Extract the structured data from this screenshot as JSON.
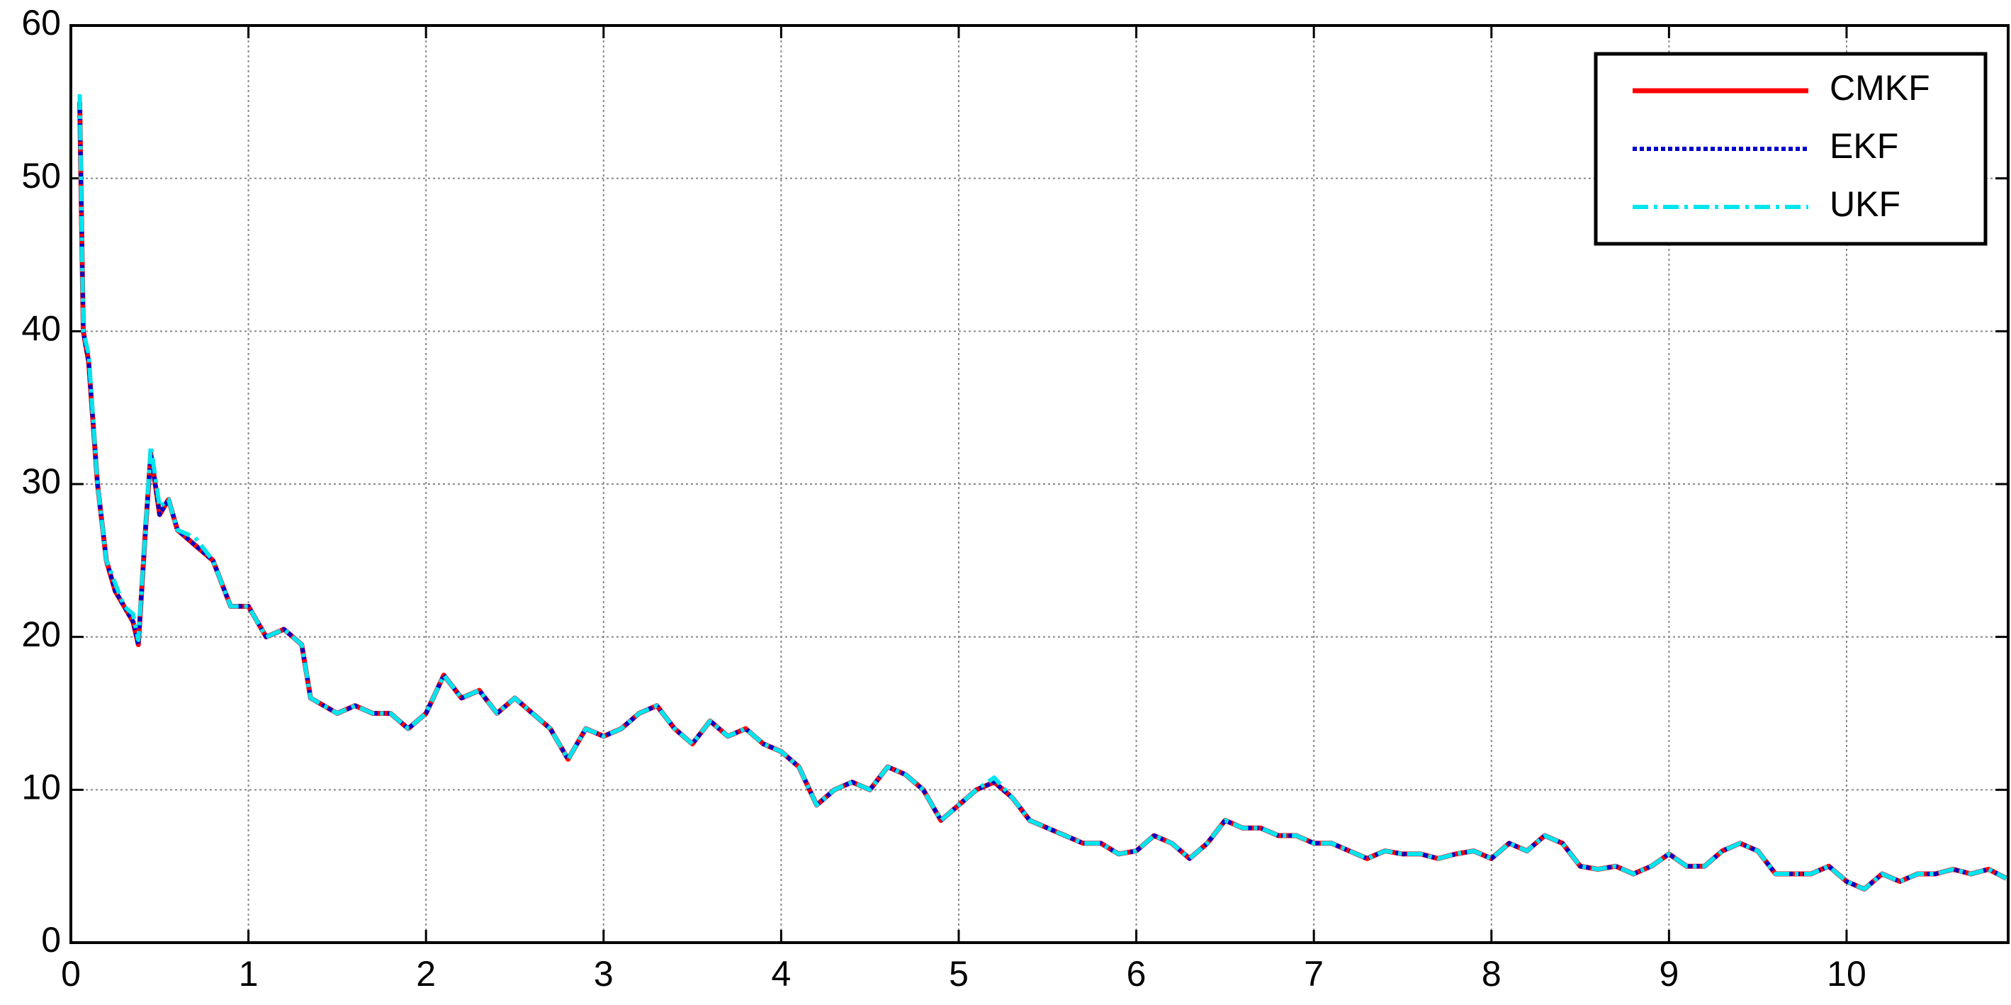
{
  "chart_data": {
    "type": "line",
    "x": [
      0.05,
      0.07,
      0.1,
      0.15,
      0.2,
      0.25,
      0.3,
      0.35,
      0.38,
      0.42,
      0.45,
      0.5,
      0.55,
      0.6,
      0.7,
      0.8,
      0.9,
      1.0,
      1.1,
      1.2,
      1.3,
      1.35,
      1.5,
      1.6,
      1.7,
      1.8,
      1.9,
      2.0,
      2.1,
      2.2,
      2.3,
      2.4,
      2.5,
      2.6,
      2.7,
      2.8,
      2.9,
      3.0,
      3.1,
      3.2,
      3.3,
      3.4,
      3.5,
      3.6,
      3.7,
      3.8,
      3.9,
      4.0,
      4.1,
      4.2,
      4.3,
      4.4,
      4.5,
      4.6,
      4.7,
      4.8,
      4.9,
      5.0,
      5.1,
      5.2,
      5.3,
      5.4,
      5.5,
      5.6,
      5.7,
      5.8,
      5.9,
      6.0,
      6.1,
      6.2,
      6.3,
      6.4,
      6.5,
      6.6,
      6.7,
      6.8,
      6.9,
      7.0,
      7.1,
      7.2,
      7.3,
      7.4,
      7.5,
      7.6,
      7.7,
      7.8,
      7.9,
      8.0,
      8.1,
      8.2,
      8.3,
      8.4,
      8.5,
      8.6,
      8.7,
      8.8,
      8.9,
      9.0,
      9.1,
      9.2,
      9.3,
      9.4,
      9.5,
      9.6,
      9.7,
      9.8,
      9.9,
      10.0,
      10.1,
      10.2,
      10.3,
      10.4,
      10.5,
      10.6,
      10.7,
      10.8,
      10.9
    ],
    "series": [
      {
        "name": "CMKF",
        "color": "#ff0000",
        "style": "solid",
        "values": [
          55,
          40,
          38,
          30,
          25,
          23,
          22,
          21,
          19.5,
          27,
          32,
          28,
          29,
          27,
          26,
          25,
          22,
          22,
          20,
          20.5,
          19.5,
          16,
          15,
          15.5,
          15,
          15,
          14,
          15,
          17.5,
          16,
          16.5,
          15,
          16,
          15,
          14,
          12,
          14,
          13.5,
          14,
          15,
          15.5,
          14,
          13,
          14.5,
          13.5,
          14,
          13,
          12.5,
          11.5,
          9,
          10,
          10.5,
          10,
          11.5,
          11,
          10,
          8,
          9,
          10,
          10.5,
          9.5,
          8,
          7.5,
          7,
          6.5,
          6.5,
          5.8,
          6,
          7,
          6.5,
          5.5,
          6.5,
          8,
          7.5,
          7.5,
          7,
          7,
          6.5,
          6.5,
          6,
          5.5,
          6,
          5.8,
          5.8,
          5.5,
          5.8,
          6,
          5.5,
          6.5,
          6,
          7,
          6.5,
          5,
          4.8,
          5,
          4.5,
          5,
          5.8,
          5,
          5,
          6,
          6.5,
          6,
          4.5,
          4.5,
          4.5,
          5,
          4,
          3.5,
          4.5,
          4,
          4.5,
          4.5,
          4.8,
          4.5,
          4.8,
          4.2
        ]
      },
      {
        "name": "EKF",
        "color": "#0000cc",
        "style": "dotted",
        "values": [
          55,
          40,
          38,
          30,
          25,
          23,
          22,
          21,
          19.5,
          27,
          32,
          28,
          29,
          27,
          26,
          25,
          22,
          22,
          20,
          20.5,
          19.5,
          16,
          15,
          15.5,
          15,
          15,
          14,
          15,
          17.5,
          16,
          16.5,
          15,
          16,
          15,
          14,
          12,
          14,
          13.5,
          14,
          15,
          15.5,
          14,
          13,
          14.5,
          13.5,
          14,
          13,
          12.5,
          11.5,
          9,
          10,
          10.5,
          10,
          11.5,
          11,
          10,
          8,
          9,
          10,
          10.5,
          9.5,
          8,
          7.5,
          7,
          6.5,
          6.5,
          5.8,
          6,
          7,
          6.5,
          5.5,
          6.5,
          8,
          7.5,
          7.5,
          7,
          7,
          6.5,
          6.5,
          6,
          5.5,
          6,
          5.8,
          5.8,
          5.5,
          5.8,
          6,
          5.5,
          6.5,
          6,
          7,
          6.5,
          5,
          4.8,
          5,
          4.5,
          5,
          5.8,
          5,
          5,
          6,
          6.5,
          6,
          4.5,
          4.5,
          4.5,
          5,
          4,
          3.5,
          4.5,
          4,
          4.5,
          4.5,
          4.8,
          4.5,
          4.8,
          4.2
        ]
      },
      {
        "name": "UKF",
        "color": "#00e5ee",
        "style": "dashdot",
        "values": [
          55.5,
          40,
          38.5,
          30,
          25,
          23.5,
          22,
          21.5,
          19.8,
          27,
          32.5,
          28.5,
          29,
          27,
          26.5,
          25,
          22,
          22,
          20,
          20.5,
          19.5,
          16,
          15,
          15.5,
          15,
          15,
          14,
          15,
          17.5,
          16,
          16.5,
          15,
          16,
          15,
          14,
          12,
          14,
          13.5,
          14,
          15,
          15.5,
          14,
          13,
          14.5,
          13.5,
          14,
          13,
          12.5,
          11.5,
          9,
          10,
          10.5,
          10,
          11.5,
          11,
          10,
          8,
          9,
          10,
          10.8,
          9.5,
          8,
          7.5,
          7,
          6.5,
          6.5,
          5.8,
          6,
          7,
          6.5,
          5.5,
          6.5,
          8,
          7.5,
          7.5,
          7,
          7,
          6.5,
          6.5,
          6,
          5.5,
          6,
          5.8,
          5.8,
          5.5,
          5.8,
          6,
          5.5,
          6.5,
          6,
          7,
          6.5,
          5,
          4.8,
          5,
          4.5,
          5,
          5.8,
          5,
          5,
          6,
          6.5,
          6,
          4.5,
          4.5,
          4.5,
          5,
          4,
          3.5,
          4.5,
          4,
          4.5,
          4.5,
          4.8,
          4.5,
          4.8,
          4.2
        ]
      }
    ],
    "xlim": [
      0,
      10.91
    ],
    "xticks": [
      0,
      1,
      2,
      3,
      4,
      5,
      6,
      7,
      8,
      9,
      10
    ],
    "ylim": [
      0,
      60
    ],
    "yticks": [
      0,
      10,
      20,
      30,
      40,
      50,
      60
    ],
    "grid": true,
    "legend": "top-right"
  }
}
